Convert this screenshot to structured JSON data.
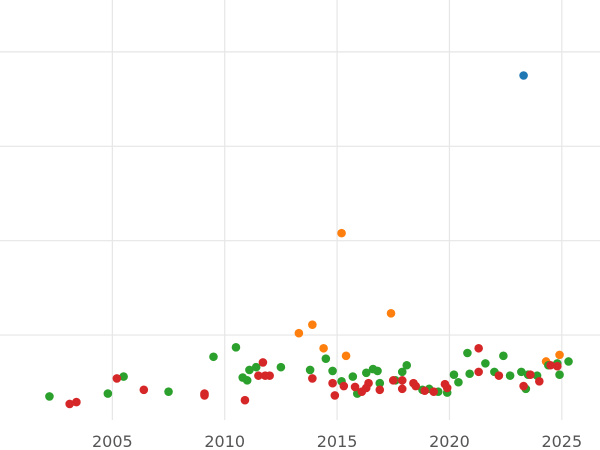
{
  "chart_data": {
    "type": "scatter",
    "title": "",
    "xlabel": "",
    "ylabel": "",
    "grid": true,
    "legend": "none",
    "xlim": [
      2000,
      2026.7
    ],
    "ylim": [
      0,
      445
    ],
    "x_ticks": [
      2005,
      2010,
      2015,
      2020,
      2025
    ],
    "x_tick_labels": [
      "2005",
      "2010",
      "2015",
      "2020",
      "2025"
    ],
    "y_grid_values": [
      90,
      190,
      290,
      390
    ],
    "colors": {
      "blue": "#1f77b4",
      "orange": "#ff7f0e",
      "green": "#2ca02c",
      "red": "#d62728"
    },
    "series": [
      {
        "color": "#1f77b4",
        "points": [
          [
            2023.3,
            365
          ]
        ]
      },
      {
        "color": "#ff7f0e",
        "points": [
          [
            2013.3,
            92
          ],
          [
            2013.9,
            101
          ],
          [
            2014.4,
            76
          ],
          [
            2015.2,
            198
          ],
          [
            2015.4,
            68
          ],
          [
            2017.4,
            113
          ],
          [
            2024.3,
            62
          ],
          [
            2024.9,
            69
          ]
        ]
      },
      {
        "color": "#2ca02c",
        "points": [
          [
            2002.2,
            25
          ],
          [
            2004.8,
            28
          ],
          [
            2005.5,
            46
          ],
          [
            2007.5,
            30
          ],
          [
            2009.5,
            67
          ],
          [
            2010.5,
            77
          ],
          [
            2010.8,
            45
          ],
          [
            2011.0,
            42
          ],
          [
            2011.1,
            53
          ],
          [
            2011.4,
            56
          ],
          [
            2012.5,
            56
          ],
          [
            2013.8,
            53
          ],
          [
            2014.5,
            65
          ],
          [
            2014.8,
            52
          ],
          [
            2015.2,
            41
          ],
          [
            2015.7,
            46
          ],
          [
            2015.9,
            28
          ],
          [
            2016.3,
            50
          ],
          [
            2016.6,
            54
          ],
          [
            2016.8,
            52
          ],
          [
            2016.9,
            39
          ],
          [
            2017.6,
            42
          ],
          [
            2017.9,
            51
          ],
          [
            2018.1,
            58
          ],
          [
            2018.8,
            32
          ],
          [
            2019.1,
            33
          ],
          [
            2019.5,
            30
          ],
          [
            2019.9,
            29
          ],
          [
            2020.2,
            48
          ],
          [
            2020.4,
            40
          ],
          [
            2020.8,
            71
          ],
          [
            2020.9,
            49
          ],
          [
            2021.6,
            60
          ],
          [
            2022.0,
            51
          ],
          [
            2022.4,
            68
          ],
          [
            2022.7,
            47
          ],
          [
            2023.2,
            51
          ],
          [
            2023.4,
            33
          ],
          [
            2023.5,
            48
          ],
          [
            2023.9,
            47
          ],
          [
            2024.4,
            58
          ],
          [
            2024.8,
            60
          ],
          [
            2024.9,
            48
          ],
          [
            2025.3,
            62
          ]
        ]
      },
      {
        "color": "#d62728",
        "points": [
          [
            2003.1,
            17
          ],
          [
            2003.4,
            19
          ],
          [
            2005.2,
            44
          ],
          [
            2006.4,
            32
          ],
          [
            2009.1,
            26
          ],
          [
            2009.1,
            28
          ],
          [
            2010.9,
            21
          ],
          [
            2011.5,
            47
          ],
          [
            2011.7,
            61
          ],
          [
            2011.8,
            47
          ],
          [
            2012.0,
            47
          ],
          [
            2013.9,
            44
          ],
          [
            2014.8,
            39
          ],
          [
            2014.9,
            26
          ],
          [
            2015.3,
            36
          ],
          [
            2015.8,
            35
          ],
          [
            2016.1,
            30
          ],
          [
            2016.3,
            34
          ],
          [
            2016.4,
            39
          ],
          [
            2016.9,
            32
          ],
          [
            2017.5,
            42
          ],
          [
            2017.9,
            33
          ],
          [
            2017.9,
            42
          ],
          [
            2018.4,
            39
          ],
          [
            2018.5,
            36
          ],
          [
            2018.9,
            31
          ],
          [
            2019.3,
            30
          ],
          [
            2019.8,
            38
          ],
          [
            2019.9,
            34
          ],
          [
            2021.3,
            76
          ],
          [
            2021.3,
            51
          ],
          [
            2022.2,
            47
          ],
          [
            2023.3,
            36
          ],
          [
            2023.6,
            48
          ],
          [
            2024.0,
            41
          ],
          [
            2024.5,
            58
          ],
          [
            2024.8,
            57
          ]
        ]
      }
    ]
  }
}
